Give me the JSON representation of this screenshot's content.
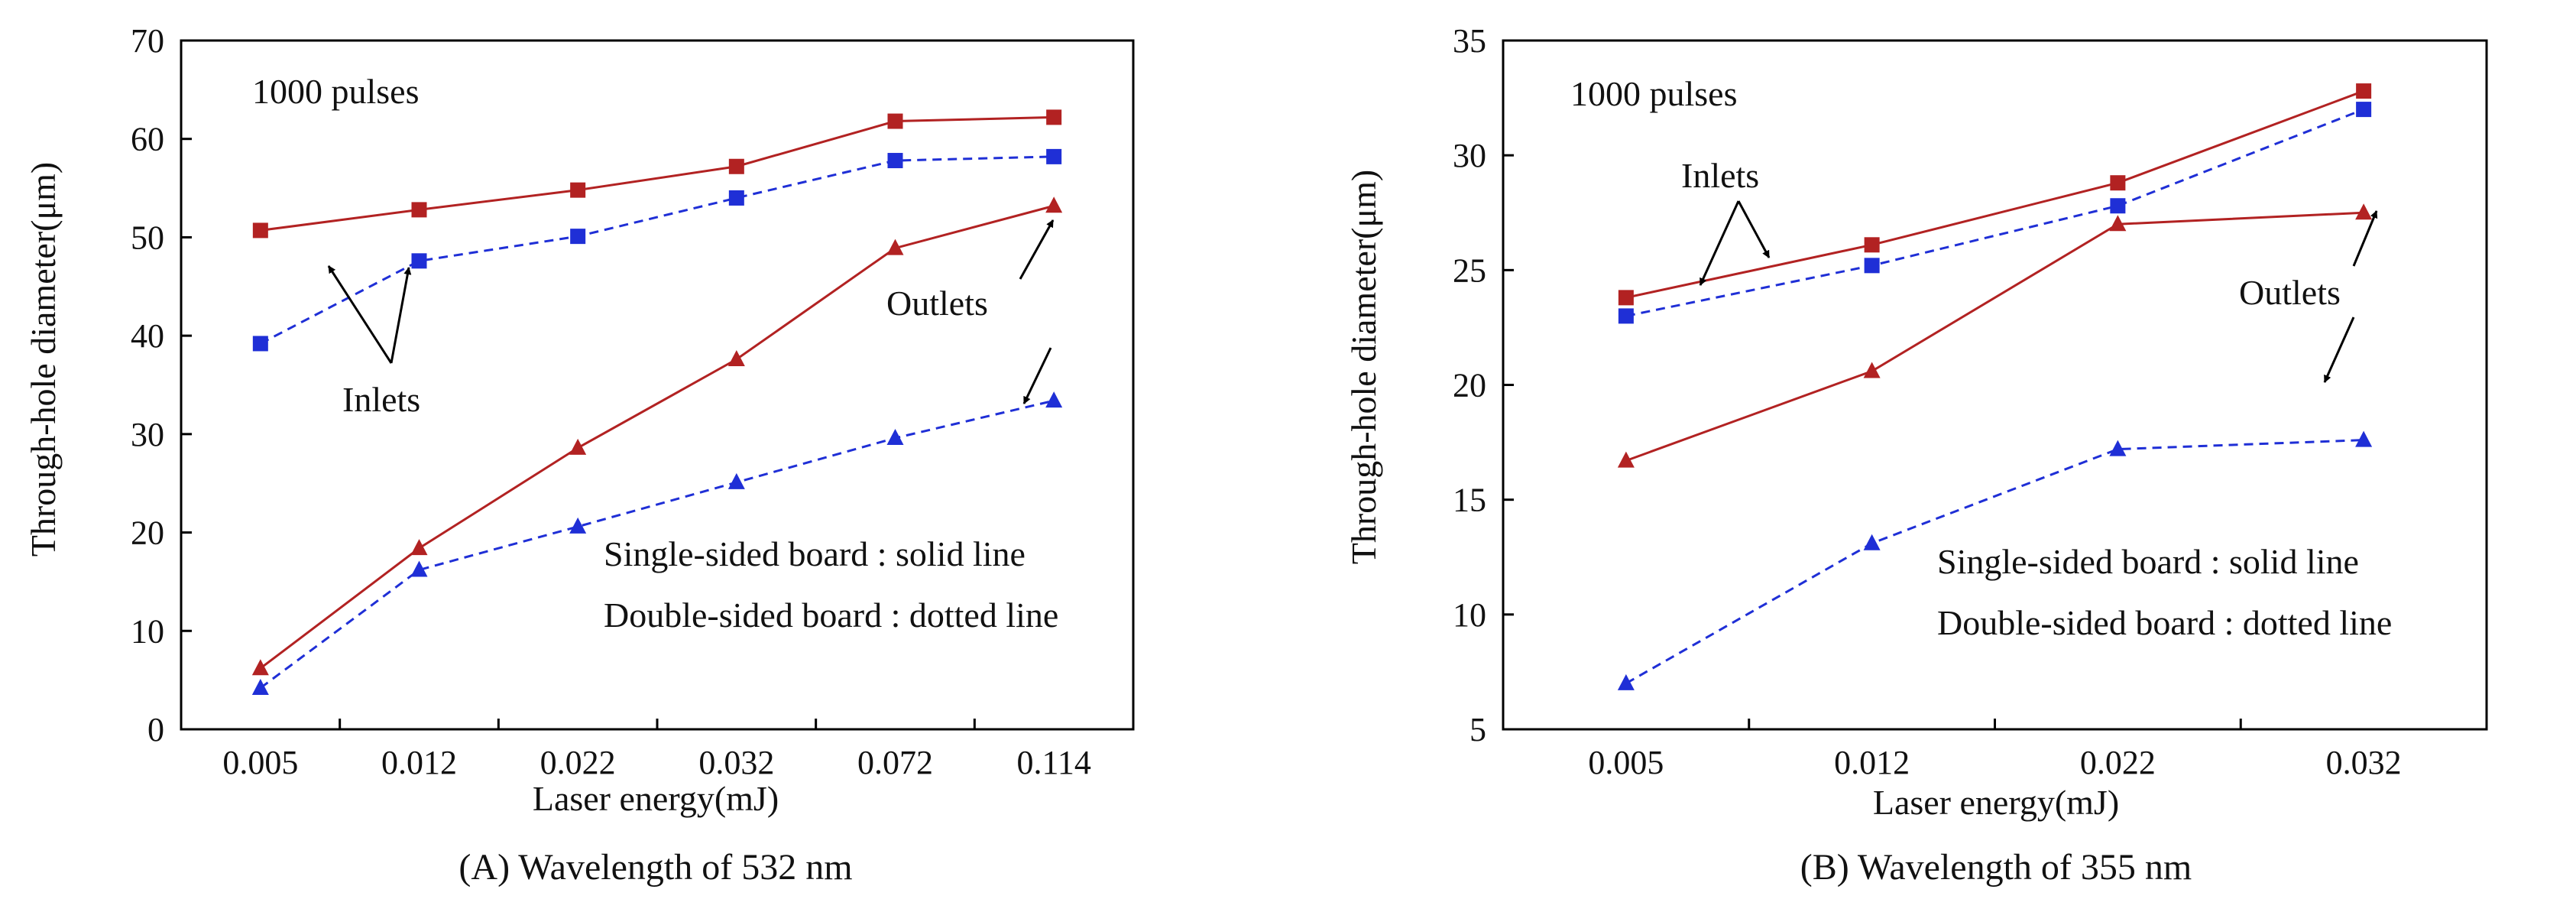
{
  "colors": {
    "single": "#b22222",
    "double": "#1f2fd6",
    "axis": "#000000",
    "text": "#111111"
  },
  "chart_data": [
    {
      "id": "A",
      "type": "line",
      "caption": "(A) Wavelength of 532 nm",
      "xlabel": "Laser energy(mJ)",
      "ylabel": "Through-hole diameter(μm)",
      "categories": [
        "0.005",
        "0.012",
        "0.022",
        "0.032",
        "0.072",
        "0.114"
      ],
      "ylim": [
        0,
        70
      ],
      "yticks": [
        0,
        10,
        20,
        30,
        40,
        50,
        60,
        70
      ],
      "series": [
        {
          "name": "Inlets, single-sided",
          "style": "solid",
          "marker": "square",
          "values": [
            50.7,
            52.8,
            54.8,
            57.2,
            61.8,
            62.2
          ]
        },
        {
          "name": "Inlets, double-sided",
          "style": "dotted",
          "marker": "square",
          "values": [
            39.2,
            47.6,
            50.1,
            54.0,
            57.8,
            58.2
          ]
        },
        {
          "name": "Outlets, single-sided",
          "style": "solid",
          "marker": "triangle",
          "values": [
            6.2,
            18.4,
            28.6,
            37.6,
            48.9,
            53.2
          ]
        },
        {
          "name": "Outlets, double-sided",
          "style": "dotted",
          "marker": "triangle",
          "values": [
            4.2,
            16.2,
            20.6,
            25.1,
            29.6,
            33.4
          ]
        }
      ],
      "annotations": {
        "pulses": "1000 pulses",
        "inlets": "Inlets",
        "outlets": "Outlets",
        "legend_solid": "Single-sided board : solid line",
        "legend_dotted": "Double-sided board : dotted line"
      }
    },
    {
      "id": "B",
      "type": "line",
      "caption": "(B) Wavelength of 355 nm",
      "xlabel": "Laser energy(mJ)",
      "ylabel": "Through-hole diameter(μm)",
      "categories": [
        "0.005",
        "0.012",
        "0.022",
        "0.032"
      ],
      "ylim": [
        5,
        35
      ],
      "yticks": [
        5,
        10,
        15,
        20,
        25,
        30,
        35
      ],
      "series": [
        {
          "name": "Inlets, single-sided",
          "style": "solid",
          "marker": "square",
          "values": [
            23.8,
            26.1,
            28.8,
            32.8
          ]
        },
        {
          "name": "Inlets, double-sided",
          "style": "dotted",
          "marker": "square",
          "values": [
            23.0,
            25.2,
            27.8,
            32.0
          ]
        },
        {
          "name": "Outlets, single-sided",
          "style": "solid",
          "marker": "triangle",
          "values": [
            16.7,
            20.6,
            27.0,
            27.5
          ]
        },
        {
          "name": "Outlets, double-sided",
          "style": "dotted",
          "marker": "triangle",
          "values": [
            7.0,
            13.1,
            17.2,
            17.6
          ]
        }
      ],
      "annotations": {
        "pulses": "1000 pulses",
        "inlets": "Inlets",
        "outlets": "Outlets",
        "legend_solid": "Single-sided board : solid line",
        "legend_dotted": "Double-sided board : dotted line"
      }
    }
  ]
}
